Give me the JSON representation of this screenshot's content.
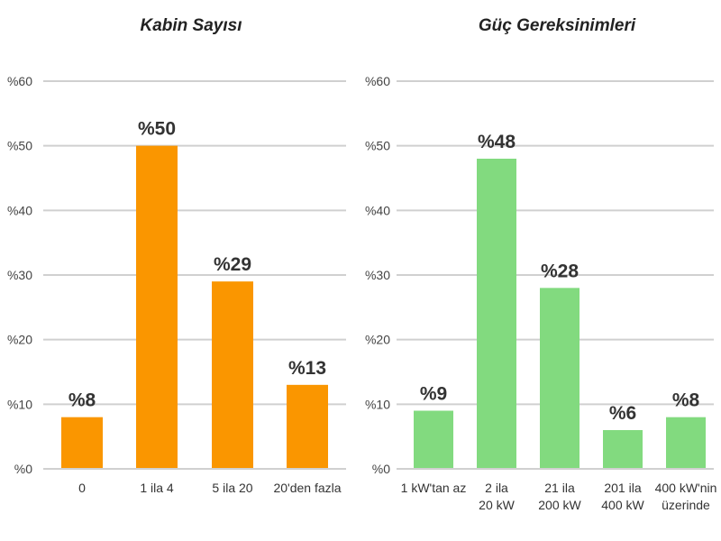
{
  "chart_data": [
    {
      "type": "bar",
      "title": "Kabin Sayısı",
      "categories": [
        [
          "0"
        ],
        [
          "1 ila 4"
        ],
        [
          "5 ila 20"
        ],
        [
          "20'den fazla"
        ]
      ],
      "values": [
        8,
        50,
        29,
        13
      ],
      "data_labels": [
        "%8",
        "%50",
        "%29",
        "%13"
      ],
      "ylim": [
        0,
        60
      ],
      "yticks": [
        "%0",
        "%10",
        "%20",
        "%30",
        "%40",
        "%50",
        "%60"
      ],
      "grid": true,
      "color": "#FA9600"
    },
    {
      "type": "bar",
      "title": "Güç Gereksinimleri",
      "categories": [
        [
          "1 kW'tan az"
        ],
        [
          "2 ila",
          "20 kW"
        ],
        [
          "21 ila",
          "200 kW"
        ],
        [
          "201 ila",
          "400 kW"
        ],
        [
          "400 kW'nin",
          "üzerinde"
        ]
      ],
      "values": [
        9,
        48,
        28,
        6,
        8
      ],
      "data_labels": [
        "%9",
        "%48",
        "%28",
        "%6",
        "%8"
      ],
      "ylim": [
        0,
        60
      ],
      "yticks": [
        "%0",
        "%10",
        "%20",
        "%30",
        "%40",
        "%50",
        "%60"
      ],
      "grid": true,
      "color": "#82DA7F"
    }
  ]
}
